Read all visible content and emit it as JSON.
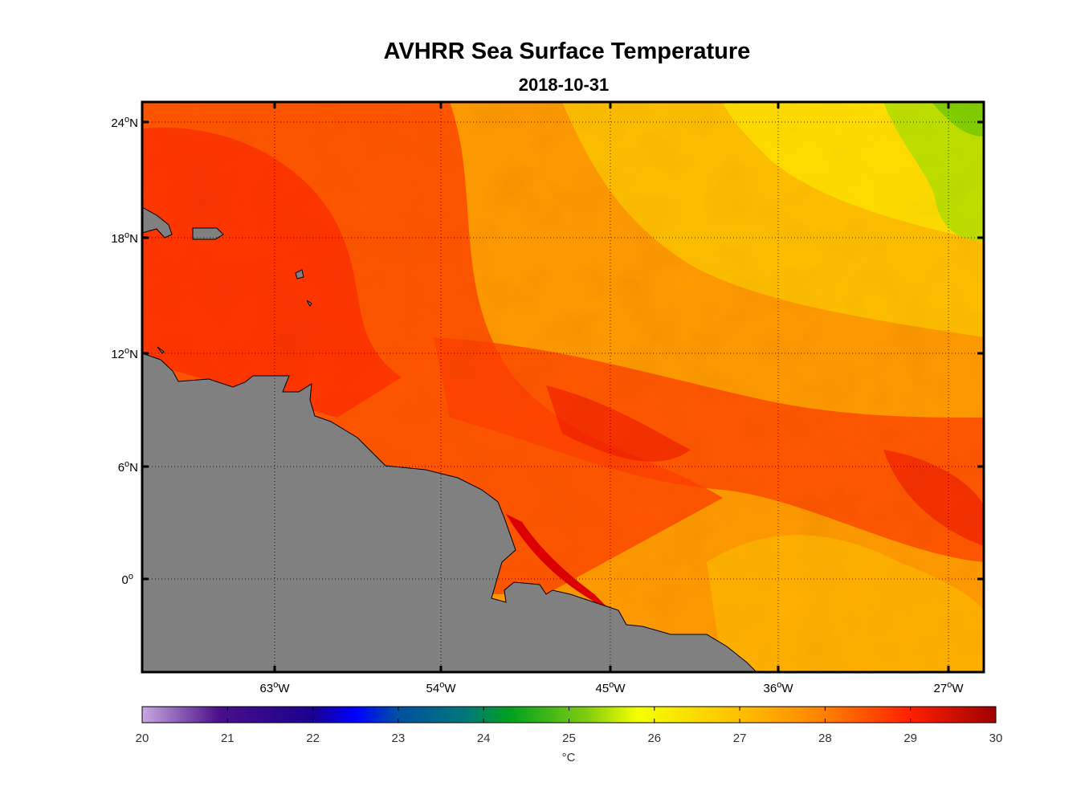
{
  "title": "AVHRR Sea Surface Temperature",
  "subtitle": "2018-10-31",
  "map": {
    "lat_labels": [
      "24",
      "18",
      "12",
      "6",
      "0"
    ],
    "lat_suffix": [
      "N",
      "N",
      "N",
      "N",
      ""
    ],
    "lon_labels": [
      "63",
      "54",
      "45",
      "36",
      "27"
    ],
    "lon_suffix": "W",
    "land_color": "#808080",
    "grid": "dotted"
  },
  "colorbar": {
    "ticks": [
      "20",
      "21",
      "22",
      "23",
      "24",
      "25",
      "26",
      "27",
      "28",
      "29",
      "30"
    ],
    "unit": "°C",
    "min": 20,
    "max": 30
  }
}
